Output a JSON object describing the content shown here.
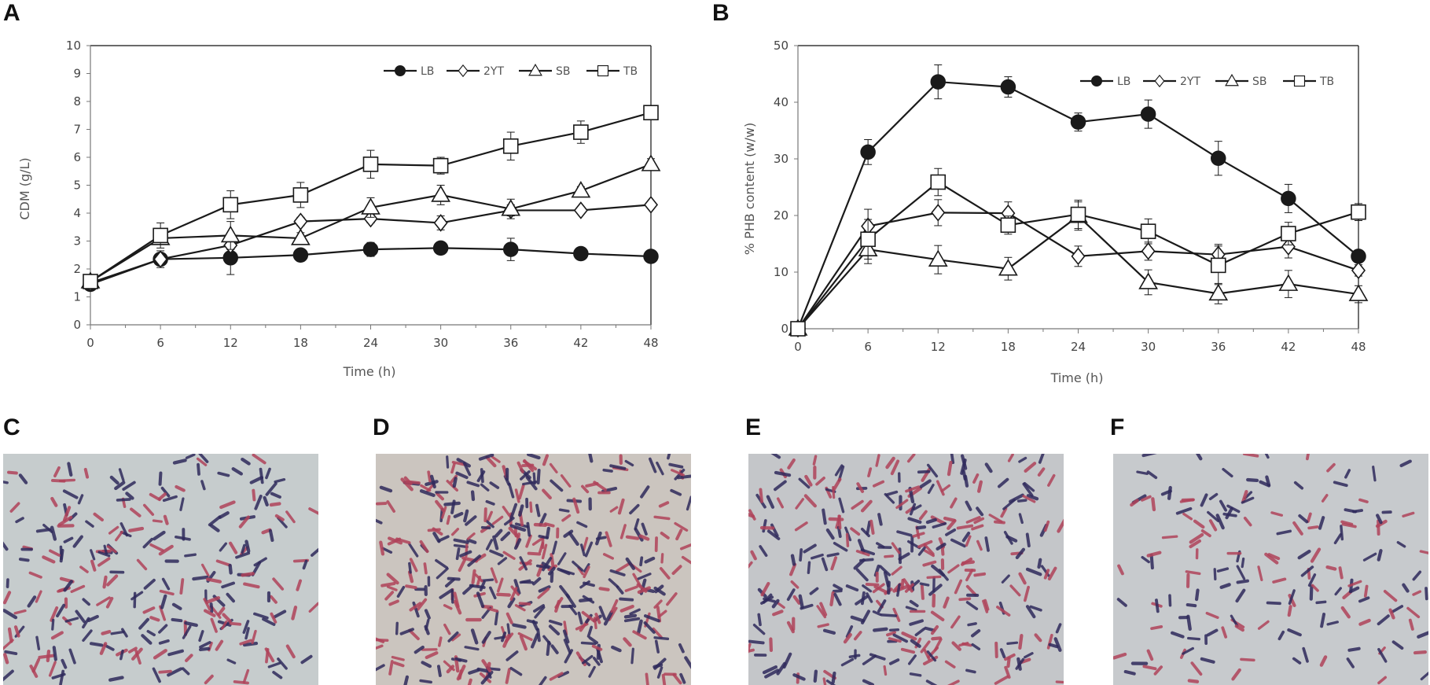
{
  "panels": [
    "A",
    "B",
    "C",
    "D",
    "E",
    "F"
  ],
  "chart_data": [
    {
      "type": "line",
      "panel": "A",
      "title": "",
      "xlabel": "Time (h)",
      "ylabel": "CDM (g/L)",
      "x": [
        0,
        6,
        12,
        18,
        24,
        30,
        36,
        42,
        48
      ],
      "xlim": [
        0,
        48
      ],
      "ylim": [
        0,
        10
      ],
      "xticks": [
        "0",
        "6",
        "12",
        "18",
        "24",
        "30",
        "36",
        "42",
        "48"
      ],
      "yticks": [
        "0",
        "1",
        "2",
        "3",
        "4",
        "5",
        "6",
        "7",
        "8",
        "9",
        "10"
      ],
      "grid": false,
      "legend": "top-right",
      "series": [
        {
          "name": "LB",
          "marker": "filled-circle",
          "values": [
            1.45,
            2.35,
            2.4,
            2.5,
            2.7,
            2.75,
            2.7,
            2.55,
            2.45
          ],
          "errors": [
            0.1,
            0.15,
            0.6,
            0.1,
            0.25,
            0.1,
            0.4,
            0.1,
            0.1
          ]
        },
        {
          "name": "2YT",
          "marker": "diamond",
          "values": [
            1.5,
            2.35,
            2.85,
            3.7,
            3.8,
            3.65,
            4.1,
            4.1,
            4.3
          ],
          "errors": [
            0.1,
            0.3,
            0.15,
            0.15,
            0.15,
            0.25,
            0.2,
            0.1,
            0.1
          ]
        },
        {
          "name": "SB",
          "marker": "triangle",
          "values": [
            1.55,
            3.1,
            3.2,
            3.1,
            4.2,
            4.65,
            4.15,
            4.8,
            5.75
          ],
          "errors": [
            0.1,
            0.15,
            0.5,
            0.2,
            0.35,
            0.35,
            0.35,
            0.15,
            0.2
          ]
        },
        {
          "name": "TB",
          "marker": "square",
          "values": [
            1.55,
            3.2,
            4.3,
            4.65,
            5.75,
            5.7,
            6.4,
            6.9,
            7.6
          ],
          "errors": [
            0.1,
            0.45,
            0.5,
            0.45,
            0.5,
            0.3,
            0.5,
            0.4,
            0.2
          ]
        }
      ]
    },
    {
      "type": "line",
      "panel": "B",
      "title": "",
      "xlabel": "Time (h)",
      "ylabel": "% PHB content (w/w)",
      "x": [
        0,
        6,
        12,
        18,
        24,
        30,
        36,
        42,
        48
      ],
      "xlim": [
        0,
        48
      ],
      "ylim": [
        0,
        50
      ],
      "xticks": [
        "0",
        "6",
        "12",
        "18",
        "24",
        "30",
        "36",
        "42",
        "48"
      ],
      "yticks": [
        "0",
        "10",
        "20",
        "30",
        "40",
        "50"
      ],
      "grid": false,
      "legend": "top-right",
      "series": [
        {
          "name": "LB",
          "marker": "filled-circle",
          "values": [
            0,
            31.2,
            43.6,
            42.7,
            36.5,
            37.9,
            30.1,
            23.0,
            12.8
          ],
          "errors": [
            0.5,
            2.2,
            3.0,
            1.8,
            1.6,
            2.5,
            3.0,
            2.5,
            1.0
          ]
        },
        {
          "name": "2YT",
          "marker": "diamond",
          "values": [
            0,
            18.1,
            20.5,
            20.4,
            12.8,
            13.7,
            13.1,
            14.5,
            10.3
          ],
          "errors": [
            0.5,
            3.0,
            2.3,
            2.0,
            1.8,
            1.6,
            1.8,
            2.0,
            1.0
          ]
        },
        {
          "name": "SB",
          "marker": "triangle",
          "values": [
            0,
            14.0,
            12.2,
            10.6,
            19.9,
            8.2,
            6.2,
            7.9,
            6.1
          ],
          "errors": [
            0.5,
            2.5,
            2.5,
            2.0,
            2.5,
            2.2,
            1.8,
            2.4,
            1.5
          ]
        },
        {
          "name": "TB",
          "marker": "square",
          "values": [
            0,
            15.8,
            25.9,
            18.3,
            20.2,
            17.2,
            11.2,
            16.8,
            20.6
          ],
          "errors": [
            0.5,
            3.5,
            2.4,
            1.6,
            2.5,
            2.2,
            3.4,
            2.0,
            1.5
          ]
        }
      ]
    }
  ],
  "micrographs": [
    {
      "panel": "C",
      "background": "#c6cccd",
      "density": "medium"
    },
    {
      "panel": "D",
      "background": "#cbc5bf",
      "density": "high"
    },
    {
      "panel": "E",
      "background": "#c4c6c9",
      "density": "medium-high"
    },
    {
      "panel": "F",
      "background": "#c7cacd",
      "density": "low"
    }
  ],
  "colors": {
    "line": "#1a1a1a",
    "axis": "#777777",
    "cell_dark": "#2f2a5c",
    "cell_red": "#b0435a"
  }
}
